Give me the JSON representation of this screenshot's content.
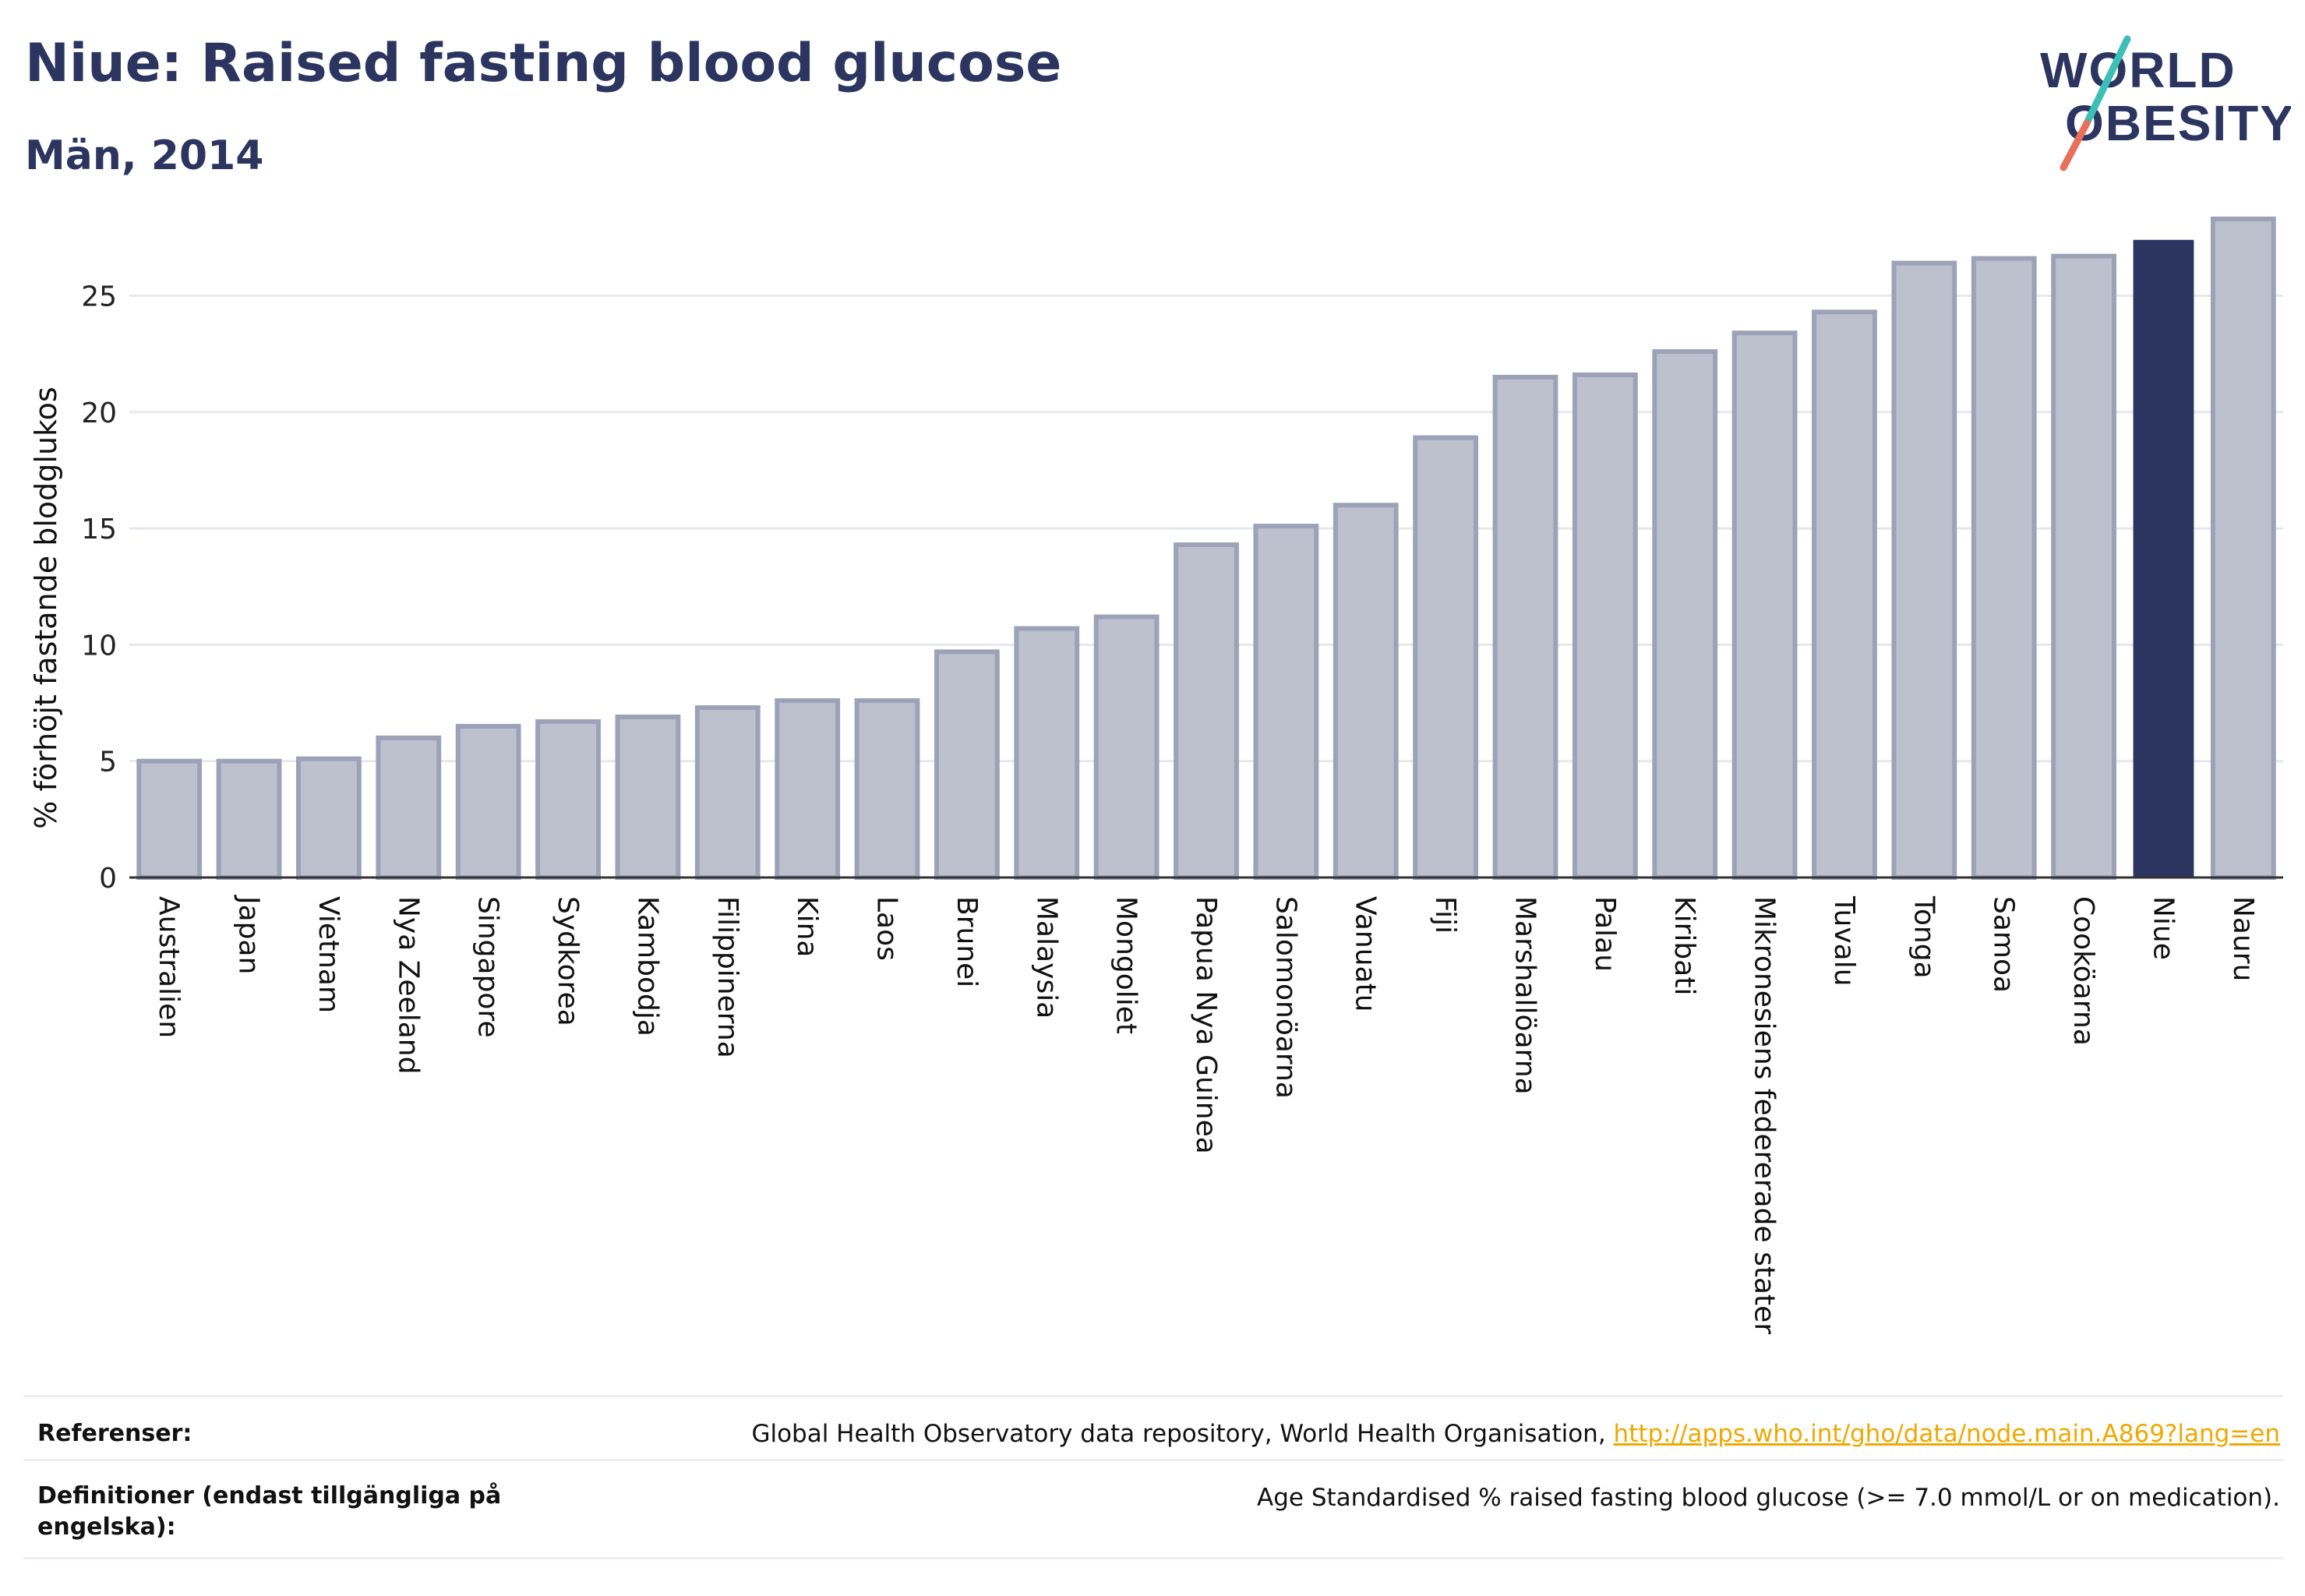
{
  "header": {
    "title": "Niue: Raised fasting blood glucose",
    "subtitle": "Män, 2014",
    "logo_line1": "WORLD",
    "logo_line2": "OBESITY"
  },
  "colors": {
    "bar_default": "#bdc0cd",
    "bar_border": "#9da2b8",
    "bar_highlight": "#2b3560",
    "grid": "#e6e8ef",
    "axis": "#333333",
    "logo_teal": "#3bbfb6",
    "logo_coral": "#e8705a",
    "link": "#f0a800"
  },
  "chart_data": {
    "type": "bar",
    "title": "Niue: Raised fasting blood glucose",
    "subtitle": "Män, 2014",
    "xlabel": "",
    "ylabel": "% förhöjt fastande blodglukos",
    "ylim": [
      0,
      29
    ],
    "yticks": [
      0,
      5,
      10,
      15,
      20,
      25
    ],
    "grid": true,
    "highlight": "Niue",
    "categories": [
      "Australien",
      "Japan",
      "Vietnam",
      "Nya Zeeland",
      "Singapore",
      "Sydkorea",
      "Kambodja",
      "Filippinerna",
      "Kina",
      "Laos",
      "Brunei",
      "Malaysia",
      "Mongoliet",
      "Papua Nya Guinea",
      "Salomonöarna",
      "Vanuatu",
      "Fiji",
      "Marshallöarna",
      "Palau",
      "Kiribati",
      "Mikronesiens federerade stater",
      "Tuvalu",
      "Tonga",
      "Samoa",
      "Cooköarna",
      "Niue",
      "Nauru"
    ],
    "values": [
      5.0,
      5.0,
      5.1,
      6.0,
      6.5,
      6.7,
      6.9,
      7.3,
      7.6,
      7.6,
      9.7,
      10.7,
      11.2,
      14.3,
      15.1,
      16.0,
      18.9,
      21.5,
      21.6,
      22.6,
      23.4,
      24.3,
      26.4,
      26.6,
      26.7,
      27.4,
      28.3
    ]
  },
  "footer": {
    "ref_label": "Referenser:",
    "ref_text": "Global Health Observatory data repository, World Health Organisation, ",
    "ref_link": "http://apps.who.int/gho/data/node.main.A869?lang=en",
    "def_label_line1": "Definitioner (endast tillgängliga på",
    "def_label_line2": "engelska):",
    "def_text": "Age Standardised % raised fasting blood glucose (>= 7.0 mmol/L or on medication)."
  }
}
